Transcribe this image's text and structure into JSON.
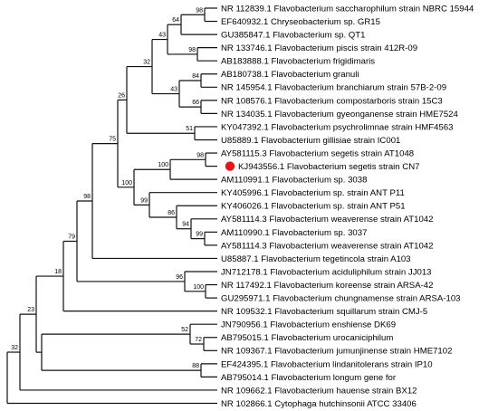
{
  "highlight_color": "#e8141a",
  "leaves": [
    "NR 112839.1 Flavobacterium saccharophilum strain NBRC 15944",
    "EF640932.1 Chryseobacterium sp. GR15",
    "GU385847.1 Flavobacterium sp. QT1",
    "NR 133746.1 Flavobacterium piscis strain 412R-09",
    "AB183888.1 Flavobacterium frigidimaris",
    "AB180738.1 Flavobacterium granuli",
    "NR 145954.1 Flavobacterium branchiarum strain 57B-2-09",
    "NR 108576.1 Flavobacterium compostarboris strain 15C3",
    "NR 134035.1 Flavobacterium gyeonganense strain HME7524",
    "KY047392.1 Flavobacterium psychrolimnae strain HMF4563",
    "U85889.1 Flavobacterium gillisiae strain IC001",
    "AY581115.3 Flavobacterium segetis strain AT1048",
    "KJ943556.1 Flavobacterium segetis strain CN7",
    "AM110991.1 Flavobacterium sp. 3038",
    "KY405996.1 Flavobacterium sp. strain ANT P11",
    "KY406026.1 Flavobacterium sp. strain ANT P51",
    "AY581114.3 Flavobacterium weaverense strain AT1042",
    "AM110990.1 Flavobacterium sp. 3037",
    "AY581114.3 Flavobacterium weaverense strain AT1042",
    "U85887.1 Flavobacterium tegetincola strain A103",
    "JN712178.1 Flavobacterium aciduliphilum strain JJ013",
    "NR 117492.1 Flavobacterium koreense strain ARSA-42",
    "GU295971.1 Flavobacterium chungnamense strain ARSA-103",
    "NR 109532.1 Flavobacterium squillarum strain CMJ-5",
    "JN790956.1 Flavobacterium enshiense DK69",
    "AB795015.1 Flavobacterium urocaniciphilum",
    "NR 109367.1 Flavobacterium jumunjinense strain HME7102",
    "EF424395.1 Flavobacterium lindanitolerans strain IP10",
    "AB795014.1 Flavobacterium longum gene for",
    "NR 109662.1 Flavobacterium hauense strain BX12",
    "NR 102866.1 Cytophaga hutchinsonii ATCC 33406"
  ],
  "bootstrap": {
    "n_1_2": "98",
    "n_1_3": "64",
    "n_1_3_4": "43",
    "n_4_5": "98",
    "n_6_7": "84",
    "n_8_9": "66",
    "n_7_9": "43",
    "n_1_9": "32",
    "n_10_11": "51",
    "n_1_11": "26",
    "n_12_13": "98",
    "n_12_14": "100",
    "n_17_18": "99",
    "n_17_19": "94",
    "n_16_19": "86",
    "n_15_19": "99",
    "n_12_19": "100",
    "n_1_19": "75",
    "n_1_20": "98",
    "n_22_23": "100",
    "n_21_23": "96",
    "n_1_23": "79",
    "n_1_24": "18",
    "n_25_27": "52",
    "n_26_27": "72",
    "n_28_29": "88",
    "n_1_29": "23",
    "n_1_30": "32"
  }
}
